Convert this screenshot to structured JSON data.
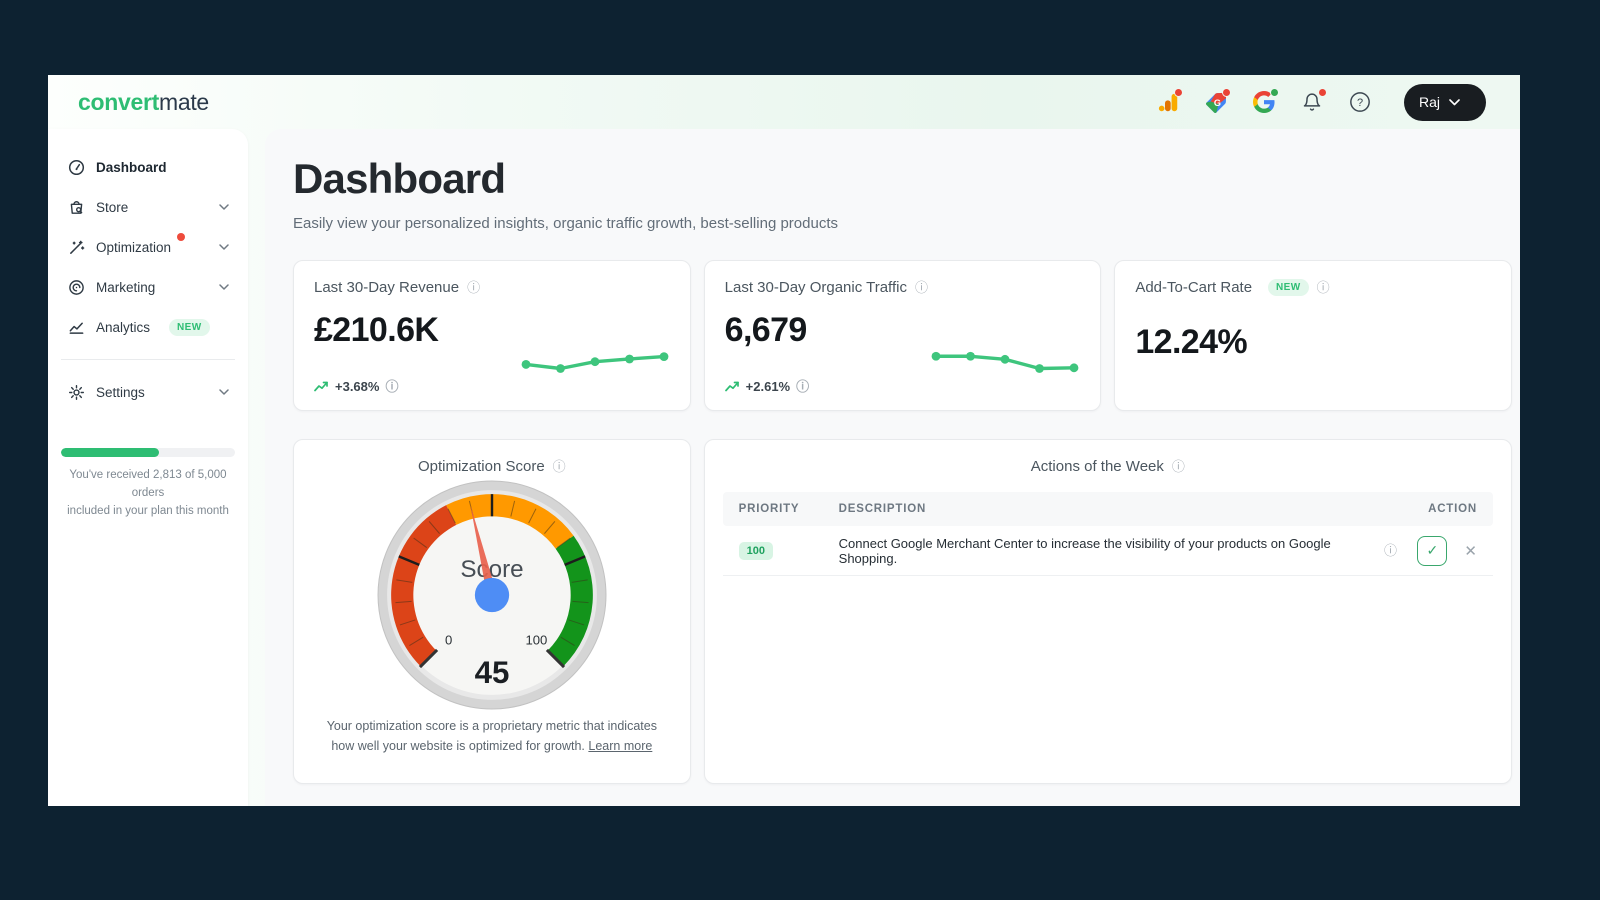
{
  "brand": {
    "primary": "convert",
    "secondary": "mate"
  },
  "header": {
    "user": {
      "label": "Raj"
    },
    "icons": [
      {
        "name": "google-analytics-icon",
        "badge": "red"
      },
      {
        "name": "google-shopping-icon",
        "badge": "red"
      },
      {
        "name": "google-g-icon",
        "badge": "green"
      },
      {
        "name": "bell-icon",
        "badge": "red"
      },
      {
        "name": "help-icon",
        "badge": null
      }
    ]
  },
  "sidebar": {
    "items": [
      {
        "label": "Dashboard",
        "active": true
      },
      {
        "label": "Store",
        "chevron": true
      },
      {
        "label": "Optimization",
        "chevron": true,
        "dot": true
      },
      {
        "label": "Marketing",
        "chevron": true
      },
      {
        "label": "Analytics",
        "badge": "NEW"
      },
      {
        "label": "Settings",
        "chevron": true
      }
    ],
    "usage": {
      "percent": 56.26,
      "line1": "You've received 2,813 of 5,000 orders",
      "line2": "included in your plan this month"
    }
  },
  "page": {
    "title": "Dashboard",
    "subtitle": "Easily view your personalized insights, organic traffic growth, best-selling products"
  },
  "cards": {
    "revenue": {
      "label": "Last 30-Day Revenue",
      "value": "£210.6K",
      "change": "+3.68%"
    },
    "traffic": {
      "label": "Last 30-Day Organic Traffic",
      "value": "6,679",
      "change": "+2.61%"
    },
    "add_to_cart": {
      "label": "Add-To-Cart Rate",
      "badge": "NEW",
      "value": "12.24%"
    }
  },
  "gauge_card": {
    "title": "Optimization Score",
    "caption": "Your optimization score is a proprietary metric that indicates how well your website is optimized for growth.",
    "learn_more": "Learn more"
  },
  "actions_card": {
    "title": "Actions of the Week",
    "columns": [
      "PRIORITY",
      "DESCRIPTION",
      "ACTION"
    ],
    "rows": [
      {
        "priority": "100",
        "description": "Connect Google Merchant Center to increase the visibility of your products on Google Shopping."
      }
    ]
  },
  "icons": {
    "check": "✓",
    "dismiss": "✕",
    "info": "ⓘ"
  },
  "colors": {
    "accent_green": "#2ebd73",
    "spark_green": "#3ec57d",
    "gauge_red": "#dc4418",
    "gauge_orange": "#ff9900",
    "gauge_green": "#13941b",
    "needle": "#e8614d",
    "hub_blue": "#4e8df5",
    "badge_red": "#ea4335",
    "badge_green": "#34a853"
  },
  "chart_data": [
    {
      "type": "line",
      "name": "revenue_sparkline",
      "x": [
        1,
        2,
        3,
        4,
        5
      ],
      "values": [
        0.37,
        0.25,
        0.45,
        0.53,
        0.6
      ],
      "color": "#3ec57d",
      "grid": false,
      "axes_hidden": true
    },
    {
      "type": "line",
      "name": "traffic_sparkline",
      "x": [
        1,
        2,
        3,
        4,
        5
      ],
      "values": [
        0.61,
        0.61,
        0.52,
        0.25,
        0.27
      ],
      "color": "#3ec57d",
      "grid": false,
      "axes_hidden": true
    },
    {
      "type": "gauge",
      "name": "optimization_score",
      "label": "Score",
      "value": 45,
      "min": 0,
      "max": 100,
      "zones": [
        {
          "from": 0,
          "to": 40,
          "color": "#dc4418"
        },
        {
          "from": 40,
          "to": 70,
          "color": "#ff9900"
        },
        {
          "from": 70,
          "to": 100,
          "color": "#13941b"
        }
      ],
      "major_ticks": [
        25,
        50,
        75
      ]
    }
  ]
}
